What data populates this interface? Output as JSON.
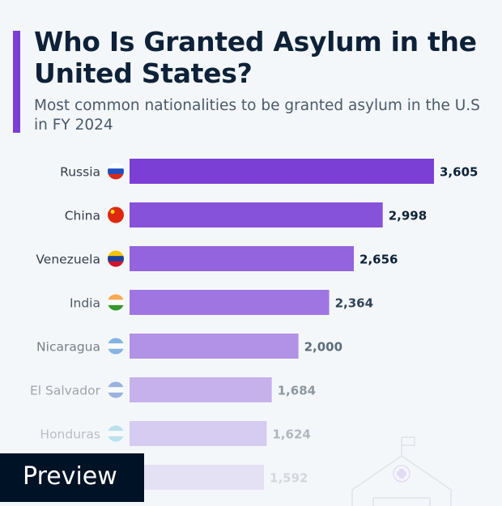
{
  "title": "Who Is Granted Asylum in the United States?",
  "subtitle": "Most common nationalities to be granted asylum in the U.S in FY 2024",
  "preview_label": "Preview",
  "chart_data": {
    "type": "bar",
    "orientation": "horizontal",
    "categories": [
      "Russia",
      "China",
      "Venezuela",
      "India",
      "Nicaragua",
      "El Salvador",
      "Honduras",
      ""
    ],
    "values": [
      3605,
      2998,
      2656,
      2364,
      2000,
      1684,
      1624,
      1592
    ],
    "value_labels": [
      "3,605",
      "2,998",
      "2,656",
      "2,364",
      "2,000",
      "1,684",
      "1,624",
      "1,592"
    ],
    "flag_icons": [
      "russia-flag",
      "china-flag",
      "venezuela-flag",
      "india-flag",
      "nicaragua-flag",
      "el-salvador-flag",
      "honduras-flag",
      ""
    ],
    "bar_color": "#7b3fd6",
    "grid": false,
    "xlim": [
      0,
      3605
    ]
  }
}
